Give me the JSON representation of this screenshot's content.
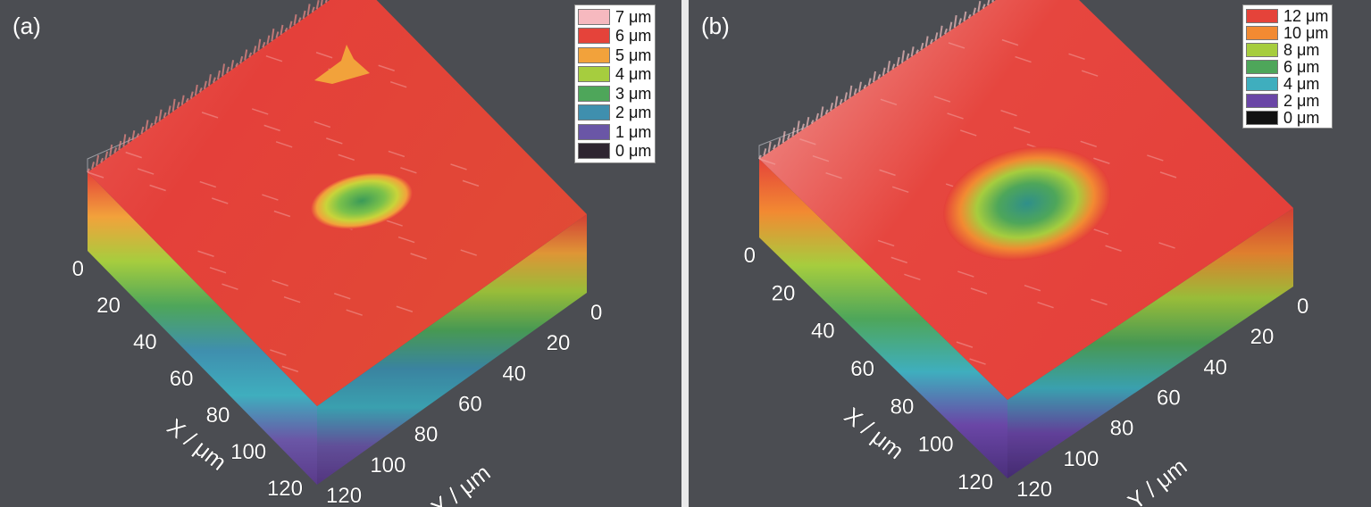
{
  "chart_data": [
    {
      "type": "surface",
      "panel_label": "(a)",
      "xlabel": "X / μm",
      "ylabel": "Y / μm",
      "x_ticks": [
        "0",
        "20",
        "40",
        "60",
        "80",
        "100",
        "120"
      ],
      "y_ticks": [
        "0",
        "20",
        "40",
        "60",
        "80",
        "100",
        "120"
      ],
      "xlim": [
        0,
        120
      ],
      "ylim": [
        0,
        120
      ],
      "zlim": [
        0,
        7
      ],
      "colorbar": [
        {
          "label": "7 μm",
          "color": "#f6b9bf"
        },
        {
          "label": "6 μm",
          "color": "#e5433a"
        },
        {
          "label": "5 μm",
          "color": "#f2a23b"
        },
        {
          "label": "4 μm",
          "color": "#a6cd3e"
        },
        {
          "label": "3 μm",
          "color": "#4ea65a"
        },
        {
          "label": "2 μm",
          "color": "#3f8fae"
        },
        {
          "label": "1 μm",
          "color": "#6a56a6"
        },
        {
          "label": "0 μm",
          "color": "#2e2530"
        }
      ],
      "surface_level_um": 6,
      "pit": {
        "center": [
          45,
          60
        ],
        "depth_min_um": 3
      }
    },
    {
      "type": "surface",
      "panel_label": "(b)",
      "xlabel": "X / μm",
      "ylabel": "Y / μm",
      "x_ticks": [
        "0",
        "20",
        "40",
        "60",
        "80",
        "100",
        "120"
      ],
      "y_ticks": [
        "0",
        "20",
        "40",
        "60",
        "80",
        "100",
        "120"
      ],
      "xlim": [
        0,
        120
      ],
      "ylim": [
        0,
        120
      ],
      "zlim": [
        0,
        12
      ],
      "colorbar": [
        {
          "label": "12 μm",
          "color": "#e5433a"
        },
        {
          "label": "10 μm",
          "color": "#f28a32"
        },
        {
          "label": "8 μm",
          "color": "#a6cd3e"
        },
        {
          "label": "6 μm",
          "color": "#4ea65a"
        },
        {
          "label": "4 μm",
          "color": "#3faebe"
        },
        {
          "label": "2 μm",
          "color": "#6a46a6"
        },
        {
          "label": "0 μm",
          "color": "#111111"
        }
      ],
      "surface_level_um": 12,
      "pit": {
        "center": [
          60,
          60
        ],
        "depth_min_um": 5
      }
    }
  ]
}
